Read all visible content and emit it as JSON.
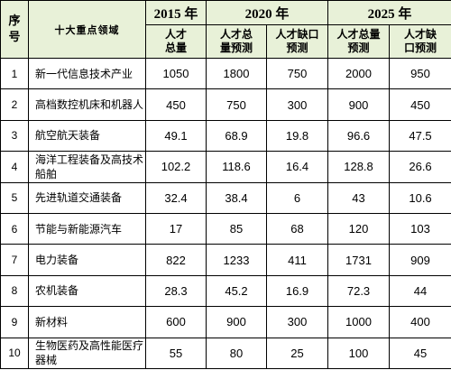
{
  "header": {
    "seq_label": "序\n号",
    "field_label": "十大重点领域",
    "years": [
      "2015 年",
      "2020 年",
      "2025 年"
    ],
    "sub_2015": "人才\n总量",
    "sub_2020_total": "人才总\n量预测",
    "sub_2020_gap": "人才缺口\n预测",
    "sub_2025_total": "人才总量\n预测",
    "sub_2025_gap": "人才缺\n口预测"
  },
  "rows": [
    {
      "seq": "1",
      "field": "新一代信息技术产业",
      "v2015": "1050",
      "v2020_total": "1800",
      "v2020_gap": "750",
      "v2025_total": "2000",
      "v2025_gap": "950"
    },
    {
      "seq": "2",
      "field": "高档数控机床和机器人",
      "v2015": "450",
      "v2020_total": "750",
      "v2020_gap": "300",
      "v2025_total": "900",
      "v2025_gap": "450"
    },
    {
      "seq": "3",
      "field": "航空航天装备",
      "v2015": "49.1",
      "v2020_total": "68.9",
      "v2020_gap": "19.8",
      "v2025_total": "96.6",
      "v2025_gap": "47.5"
    },
    {
      "seq": "4",
      "field": "海洋工程装备及高技术船舶",
      "v2015": "102.2",
      "v2020_total": "118.6",
      "v2020_gap": "16.4",
      "v2025_total": "128.8",
      "v2025_gap": "26.6"
    },
    {
      "seq": "5",
      "field": "先进轨道交通装备",
      "v2015": "32.4",
      "v2020_total": "38.4",
      "v2020_gap": "6",
      "v2025_total": "43",
      "v2025_gap": "10.6"
    },
    {
      "seq": "6",
      "field": "节能与新能源汽车",
      "v2015": "17",
      "v2020_total": "85",
      "v2020_gap": "68",
      "v2025_total": "120",
      "v2025_gap": "103"
    },
    {
      "seq": "7",
      "field": "电力装备",
      "v2015": "822",
      "v2020_total": "1233",
      "v2020_gap": "411",
      "v2025_total": "1731",
      "v2025_gap": "909"
    },
    {
      "seq": "8",
      "field": "农机装备",
      "v2015": "28.3",
      "v2020_total": "45.2",
      "v2020_gap": "16.9",
      "v2025_total": "72.3",
      "v2025_gap": "44"
    },
    {
      "seq": "9",
      "field": "新材料",
      "v2015": "600",
      "v2020_total": "900",
      "v2020_gap": "300",
      "v2025_total": "1000",
      "v2025_gap": "400"
    },
    {
      "seq": "10",
      "field": "生物医药及高性能医疗器械",
      "v2015": "55",
      "v2020_total": "80",
      "v2020_gap": "25",
      "v2025_total": "100",
      "v2025_gap": "45"
    }
  ]
}
